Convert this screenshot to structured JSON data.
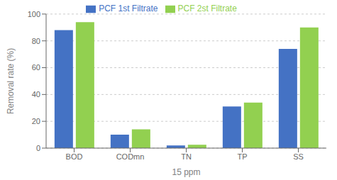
{
  "chart_data": {
    "type": "bar",
    "categories": [
      "BOD",
      "CODmn",
      "TN",
      "TP",
      "SS"
    ],
    "series": [
      {
        "name": "PCF 1st Filtrate",
        "color": "#4472C4",
        "values": [
          88,
          10,
          2,
          31,
          74
        ]
      },
      {
        "name": "PCF 2st Filtrate",
        "color": "#92D050",
        "values": [
          94,
          14,
          2.5,
          34,
          90
        ]
      }
    ],
    "xlabel": "15 ppm",
    "ylabel": "Removal rate (%)",
    "ylim": [
      0,
      100
    ],
    "yticks": [
      0,
      20,
      40,
      60,
      80,
      100
    ],
    "grid": true,
    "legend": "top"
  }
}
